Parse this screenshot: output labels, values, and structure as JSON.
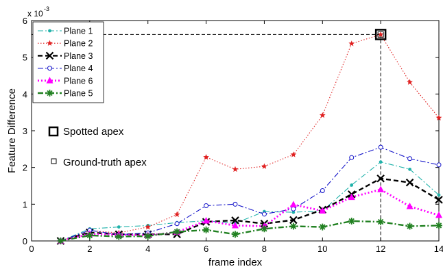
{
  "chart_data": {
    "type": "line",
    "xlabel": "frame index",
    "ylabel": "Feature Difference",
    "y_scale_label": "x 10",
    "y_scale_exponent": "-3",
    "xlim": [
      0,
      14
    ],
    "ylim": [
      0,
      6
    ],
    "x_ticks": [
      "0",
      "2",
      "4",
      "6",
      "8",
      "10",
      "12",
      "14"
    ],
    "y_ticks": [
      "0",
      "1",
      "2",
      "3",
      "4",
      "5",
      "6"
    ],
    "grid": false,
    "legend_position": "top-left",
    "x": [
      1,
      2,
      3,
      4,
      5,
      6,
      7,
      8,
      9,
      10,
      11,
      12,
      13,
      14
    ],
    "series": [
      {
        "name": "Plane 1",
        "color": "#20b2aa",
        "dash": "8,3,2,3",
        "width": 1.1,
        "marker": "dot",
        "values": [
          0.0,
          0.33,
          0.38,
          0.42,
          0.5,
          0.55,
          0.48,
          0.8,
          0.78,
          0.82,
          1.52,
          2.15,
          1.95,
          1.25
        ]
      },
      {
        "name": "Plane 2",
        "color": "#e02020",
        "dash": "1.5,2.5",
        "width": 1.1,
        "marker": "star",
        "values": [
          0.0,
          0.28,
          0.22,
          0.38,
          0.72,
          2.28,
          1.95,
          2.03,
          2.35,
          3.42,
          5.37,
          5.62,
          4.32,
          3.35
        ]
      },
      {
        "name": "Plane 3",
        "color": "#000000",
        "dash": "7,4",
        "width": 2.4,
        "marker": "x",
        "values": [
          0.0,
          0.23,
          0.18,
          0.18,
          0.18,
          0.52,
          0.56,
          0.47,
          0.57,
          0.85,
          1.27,
          1.7,
          1.59,
          1.12
        ]
      },
      {
        "name": "Plane 4",
        "color": "#1010c8",
        "dash": "8,3,2,3",
        "width": 1.1,
        "marker": "circle",
        "values": [
          0.0,
          0.29,
          0.17,
          0.22,
          0.47,
          0.96,
          1.0,
          0.73,
          0.87,
          1.37,
          2.27,
          2.55,
          2.24,
          2.07
        ]
      },
      {
        "name": "Plane 6",
        "color": "#ff00ff",
        "dash": "2,3",
        "width": 2.8,
        "marker": "triangle",
        "values": [
          0.0,
          0.19,
          0.17,
          0.15,
          0.24,
          0.55,
          0.42,
          0.4,
          0.99,
          0.82,
          1.19,
          1.4,
          0.94,
          0.7
        ]
      },
      {
        "name": "Plane 5",
        "color": "#208020",
        "dash": "8,3,2,3",
        "width": 2.4,
        "marker": "asterisk",
        "values": [
          0.0,
          0.15,
          0.12,
          0.13,
          0.25,
          0.3,
          0.18,
          0.33,
          0.4,
          0.38,
          0.54,
          0.52,
          0.4,
          0.42
        ]
      }
    ],
    "annotations": {
      "spotted_apex_label": "Spotted apex",
      "ground_truth_apex_label": "Ground-truth apex",
      "apex_point": {
        "x": 12,
        "y": 5.62
      }
    }
  }
}
